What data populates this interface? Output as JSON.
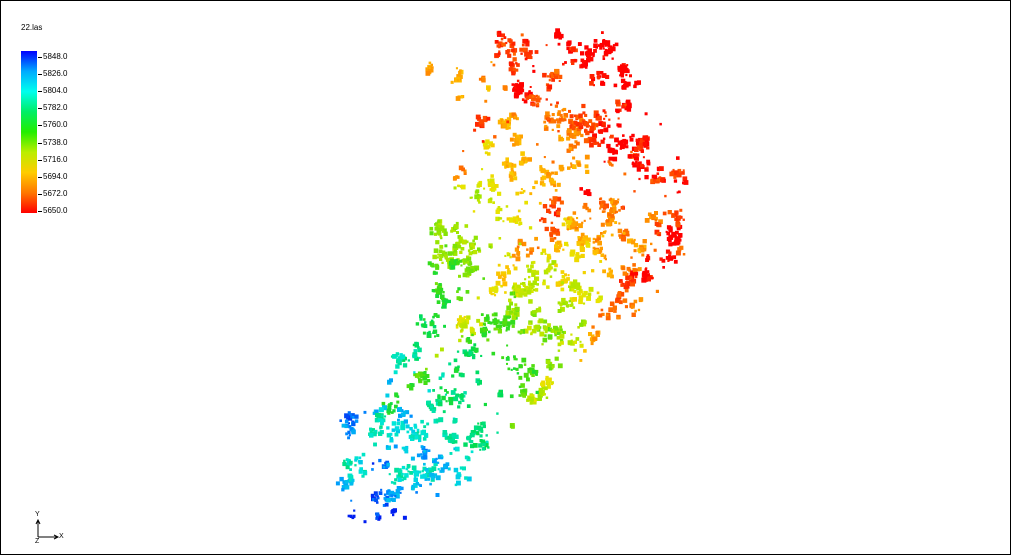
{
  "viewer": {
    "file_title": "22.las"
  },
  "legend": {
    "gradient_colors": [
      "#0000ff",
      "#00aaff",
      "#00ffee",
      "#00ee66",
      "#22ee00",
      "#bbee00",
      "#ffcc00",
      "#ff7700",
      "#ff0000"
    ],
    "ticks": [
      "5848.0",
      "5826.0",
      "5804.0",
      "5782.0",
      "5760.0",
      "5738.0",
      "5716.0",
      "5694.0",
      "5672.0",
      "5650.0"
    ]
  },
  "axes": {
    "y": "Y",
    "z": "Z",
    "x": "X"
  }
}
